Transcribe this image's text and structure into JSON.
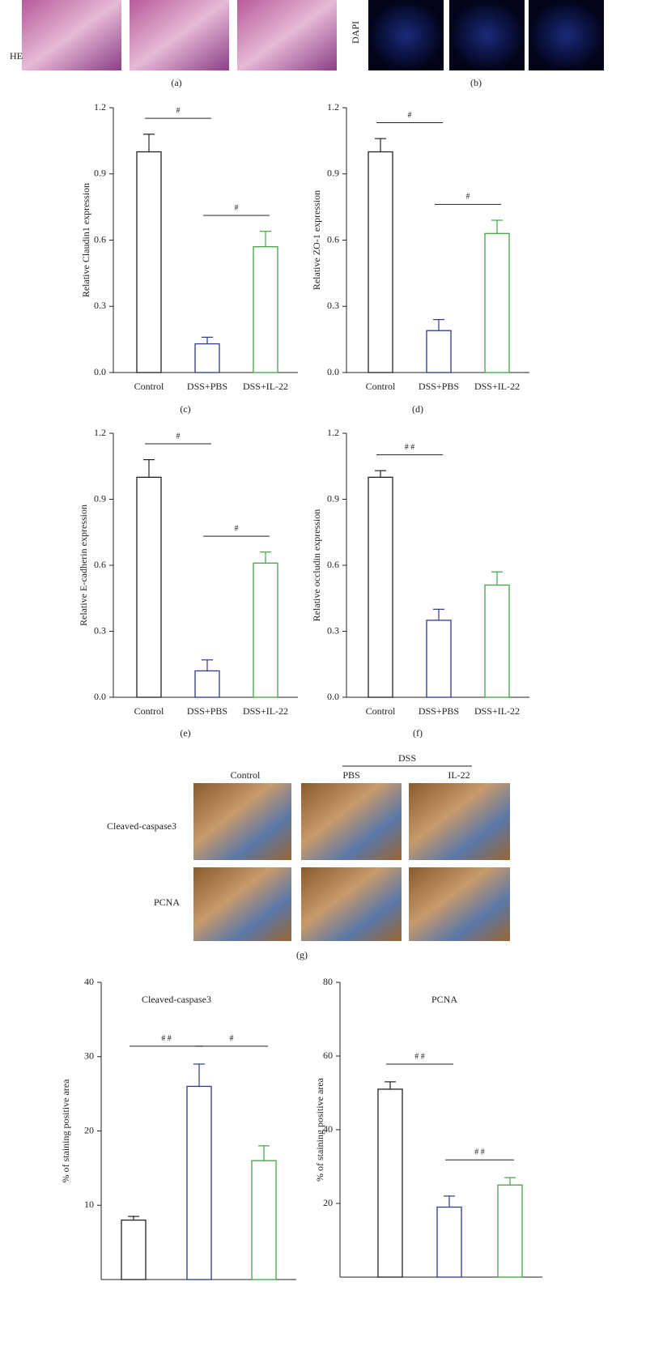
{
  "panel_a": {
    "row_label": "HE",
    "panel_label": "(a)"
  },
  "panel_b": {
    "row_label": "DAPI",
    "panel_label": "(b)"
  },
  "panel_g": {
    "columns": [
      "Control",
      "PBS",
      "IL-22"
    ],
    "group_label": "DSS",
    "rows": [
      "Cleaved-caspase3",
      "PCNA"
    ],
    "panel_label": "(g)"
  },
  "chart_data": [
    {
      "type": "bar",
      "ylabel": "Relative Claudin1 expression",
      "panel_label": "(c)",
      "categories": [
        "Control",
        "DSS+PBS",
        "DSS+IL-22"
      ],
      "values": [
        1.0,
        0.13,
        0.57
      ],
      "errors": [
        0.08,
        0.03,
        0.07
      ],
      "colors": [
        "#222222",
        "#2e3a8c",
        "#3fa53f"
      ],
      "ylim": [
        0,
        1.2
      ],
      "yticks": [
        {
          "value": 0,
          "label": "0.0"
        },
        0.3,
        0.6,
        0.9,
        1.2
      ],
      "annotations": [
        "#",
        "#"
      ]
    },
    {
      "type": "bar",
      "ylabel": "Relative ZO-1 expression",
      "panel_label": "(d)",
      "categories": [
        "Control",
        "DSS+PBS",
        "DSS+IL-22"
      ],
      "values": [
        1.0,
        0.19,
        0.63
      ],
      "errors": [
        0.06,
        0.05,
        0.06
      ],
      "colors": [
        "#222222",
        "#2e3a8c",
        "#3fa53f"
      ],
      "ylim": [
        0,
        1.2
      ],
      "yticks": [
        {
          "value": 0,
          "label": "0.0"
        },
        0.3,
        0.6,
        0.9,
        1.2
      ],
      "annotations": [
        "#",
        "#"
      ]
    },
    {
      "type": "bar",
      "ylabel": "Relative E-cadherin expression",
      "panel_label": "(e)",
      "categories": [
        "Control",
        "DSS+PBS",
        "DSS+IL-22"
      ],
      "values": [
        1.0,
        0.12,
        0.61
      ],
      "errors": [
        0.08,
        0.05,
        0.05
      ],
      "colors": [
        "#222222",
        "#2e3a8c",
        "#3fa53f"
      ],
      "ylim": [
        0,
        1.2
      ],
      "yticks": [
        {
          "value": 0,
          "label": "0.0"
        },
        0.3,
        0.6,
        0.9,
        1.2
      ],
      "annotations": [
        "#",
        "#"
      ]
    },
    {
      "type": "bar",
      "ylabel": "Relative occludin expression",
      "panel_label": "(f)",
      "categories": [
        "Control",
        "DSS+PBS",
        "DSS+IL-22"
      ],
      "values": [
        1.0,
        0.35,
        0.51
      ],
      "errors": [
        0.03,
        0.05,
        0.06
      ],
      "colors": [
        "#222222",
        "#2e3a8c",
        "#3fa53f"
      ],
      "ylim": [
        0,
        1.2
      ],
      "yticks": [
        {
          "value": 0,
          "label": "0.0"
        },
        0.3,
        0.6,
        0.9,
        1.2
      ],
      "annotations": [
        "# #"
      ]
    },
    {
      "type": "bar",
      "title": "Cleaved-caspase3",
      "ylabel": "% of staining positive area",
      "values": [
        8,
        26,
        16
      ],
      "errors": [
        0.5,
        3,
        2
      ],
      "colors": [
        "#222222",
        "#2e3a8c",
        "#3fa53f"
      ],
      "ylim": [
        0,
        40
      ],
      "yticks": [
        10,
        20,
        30,
        40
      ],
      "annotations": [
        "# #",
        "#"
      ]
    },
    {
      "type": "bar",
      "title": "PCNA",
      "ylabel": "% of staining positive area",
      "values": [
        51,
        19,
        25
      ],
      "errors": [
        2,
        3,
        2
      ],
      "colors": [
        "#222222",
        "#2e3a8c",
        "#3fa53f"
      ],
      "ylim": [
        0,
        80
      ],
      "yticks": [
        20,
        40,
        60,
        80
      ],
      "annotations": [
        "# #",
        "# #"
      ]
    }
  ]
}
